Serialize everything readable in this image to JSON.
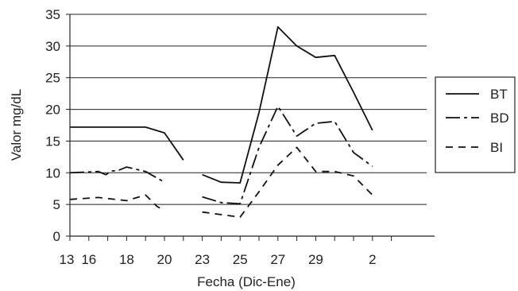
{
  "chart_data": {
    "type": "line",
    "title": "",
    "xlabel": "Fecha (Dic-Ene)",
    "ylabel": "Valor mg/dL",
    "ylim": [
      0,
      35
    ],
    "yticks": [
      0,
      5,
      10,
      15,
      20,
      25,
      30,
      35
    ],
    "grid": true,
    "legend_position": "right",
    "x_tick_labels": [
      "13",
      "16",
      "18",
      "20",
      "23",
      "25",
      "27",
      "29",
      "2"
    ],
    "x_tick_label_positions": [
      0,
      1,
      3,
      5,
      7,
      9,
      11,
      13,
      16
    ],
    "x_minor_tick_positions": [
      0,
      1,
      2,
      3,
      4,
      5,
      6,
      7,
      8,
      9,
      10,
      11,
      12,
      13,
      14,
      15,
      16,
      17
    ],
    "series": [
      {
        "name": "BT",
        "dash": "solid",
        "segments": [
          [
            [
              0,
              17.2
            ],
            [
              1,
              17.2
            ],
            [
              2,
              17.2
            ],
            [
              3,
              17.2
            ],
            [
              4,
              17.2
            ],
            [
              5,
              16.3
            ],
            [
              6,
              12.0
            ]
          ],
          [
            [
              7,
              9.7
            ],
            [
              8,
              8.5
            ],
            [
              9,
              8.4
            ],
            [
              10,
              19.5
            ],
            [
              11,
              33.0
            ],
            [
              12,
              30.0
            ],
            [
              13,
              28.2
            ],
            [
              14,
              28.5
            ],
            [
              15,
              22.7
            ],
            [
              16,
              16.7
            ]
          ]
        ]
      },
      {
        "name": "BD",
        "dash": "dashdot",
        "segments": [
          [
            [
              0,
              10.0
            ],
            [
              1.5,
              10.2
            ],
            [
              1.9,
              9.7
            ],
            [
              2.2,
              10.3
            ],
            [
              2.5,
              10.3
            ],
            [
              3,
              10.9
            ],
            [
              4,
              10.2
            ],
            [
              5,
              8.5
            ]
          ],
          [
            [
              7,
              6.2
            ],
            [
              8,
              5.3
            ],
            [
              9,
              5.1
            ],
            [
              10,
              14.0
            ],
            [
              11,
              20.5
            ],
            [
              12,
              15.8
            ],
            [
              13,
              17.8
            ],
            [
              14,
              18.1
            ],
            [
              15,
              13.2
            ],
            [
              16,
              11.0
            ]
          ]
        ]
      },
      {
        "name": "BI",
        "dash": "dashed",
        "segments": [
          [
            [
              0,
              5.8
            ],
            [
              1.5,
              6.1
            ],
            [
              3,
              5.6
            ],
            [
              4,
              6.5
            ],
            [
              4.6,
              4.7
            ],
            [
              5,
              4.0
            ]
          ],
          [
            [
              7,
              3.8
            ],
            [
              8,
              3.4
            ],
            [
              9,
              3.0
            ],
            [
              10,
              7.0
            ],
            [
              11,
              11.2
            ],
            [
              12,
              14.0
            ],
            [
              13,
              10.2
            ],
            [
              14,
              10.2
            ],
            [
              15,
              9.5
            ],
            [
              16,
              6.5
            ]
          ]
        ]
      }
    ]
  }
}
